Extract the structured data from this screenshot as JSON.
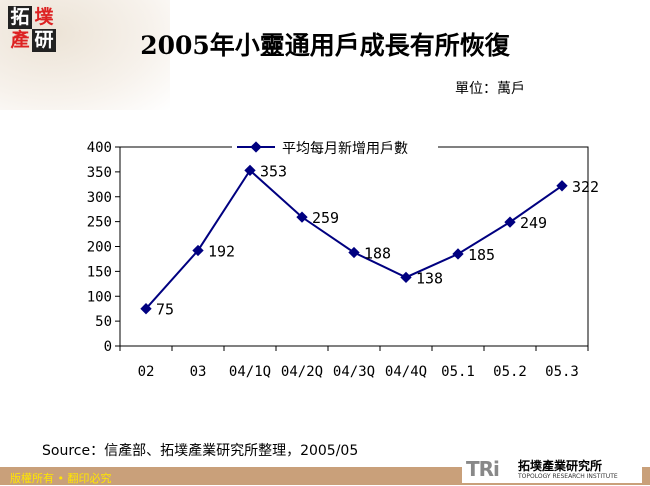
{
  "logo": {
    "chars": [
      "拓",
      "墣",
      "產",
      "研"
    ]
  },
  "title": "2005年小靈通用戶成長有所恢復",
  "unit": "單位：萬戶",
  "source": "Source：信產部、拓墣產業研究所整理，2005/05",
  "footer": {
    "copyright": "版權所有 • 翻印必究",
    "tri_mark": "TRi",
    "tri_cn": "拓墣產業研究所",
    "tri_en": "TOPOLOGY RESEARCH INSTITUTE"
  },
  "chart_data": {
    "type": "line",
    "title": "",
    "categories": [
      "02",
      "03",
      "04/1Q",
      "04/2Q",
      "04/3Q",
      "04/4Q",
      "05.1",
      "05.2",
      "05.3"
    ],
    "series": [
      {
        "name": "平均每月新增用戶數",
        "values": [
          75,
          192,
          353,
          259,
          188,
          138,
          185,
          249,
          322
        ],
        "color": "#000080"
      }
    ],
    "ylim": [
      0,
      400
    ],
    "yticks": [
      "0",
      "50",
      "100",
      "150",
      "200",
      "250",
      "300",
      "350",
      "400"
    ],
    "legend": "top",
    "grid": false
  }
}
